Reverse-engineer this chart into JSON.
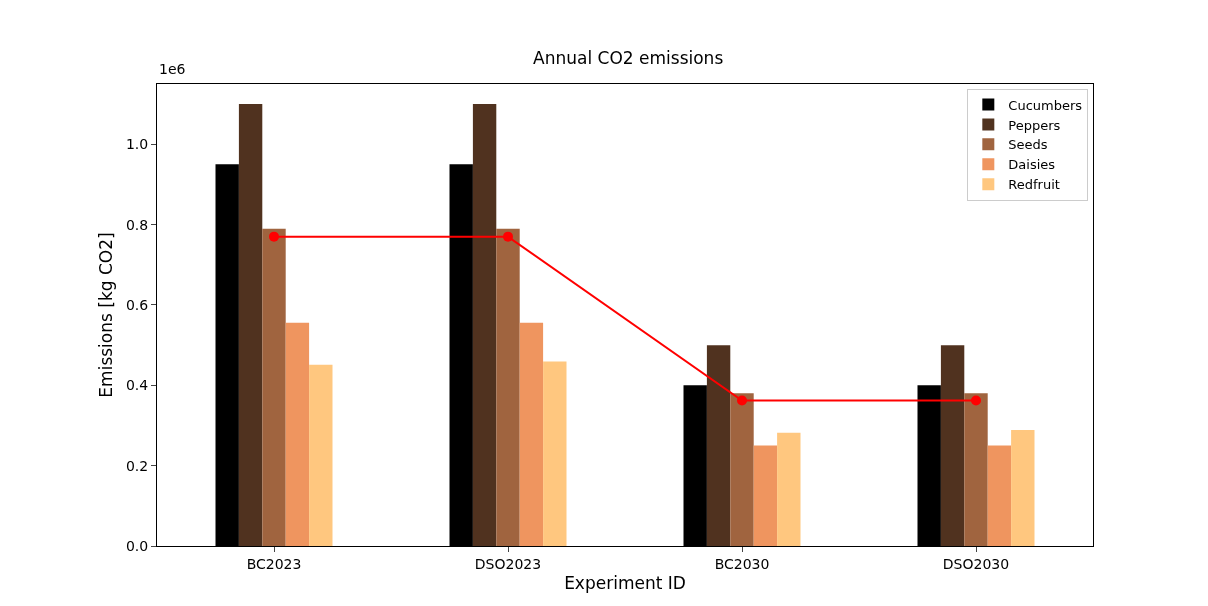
{
  "chart_data": {
    "type": "bar",
    "title": "Annual CO2 emissions",
    "xlabel": "Experiment ID",
    "ylabel": "Emissions [kg CO2]",
    "annotations": [
      "1e6"
    ],
    "categories": [
      "BC2023",
      "DSO2023",
      "BC2030",
      "DSO2030"
    ],
    "series": [
      {
        "name": "Cucumbers",
        "color": "#000000",
        "values": [
          0.95,
          0.95,
          0.4,
          0.4
        ]
      },
      {
        "name": "Peppers",
        "color": "#50321f",
        "values": [
          1.1,
          1.1,
          0.5,
          0.5
        ]
      },
      {
        "name": "Seeds",
        "color": "#a0643f",
        "values": [
          0.79,
          0.79,
          0.38,
          0.38
        ]
      },
      {
        "name": "Daisies",
        "color": "#ef955f",
        "values": [
          0.556,
          0.556,
          0.25,
          0.25
        ]
      },
      {
        "name": "Redfruit",
        "color": "#ffc77f",
        "values": [
          0.451,
          0.459,
          0.282,
          0.289
        ]
      },
      {
        "type": "line",
        "color": "#ff0000",
        "marker": "circle",
        "values": [
          0.77,
          0.77,
          0.362,
          0.362
        ]
      }
    ],
    "ylim": [
      0,
      1.15
    ],
    "yticks": [
      {
        "value": 0,
        "label": "0.0"
      },
      {
        "value": 0.2,
        "label": "0.2"
      },
      {
        "value": 0.4,
        "label": "0.4"
      },
      {
        "value": 0.6,
        "label": "0.6"
      },
      {
        "value": 0.8,
        "label": "0.8"
      },
      {
        "value": 1.0,
        "label": "1.0"
      }
    ],
    "legend": "top right"
  }
}
